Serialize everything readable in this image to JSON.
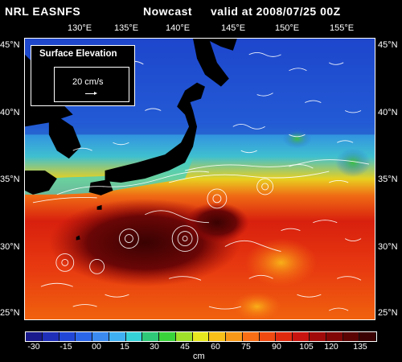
{
  "header": {
    "left": "NRL EASNFS",
    "middle": "Nowcast",
    "right": "valid at 2008/07/25 00Z"
  },
  "lon_labels": [
    "130°E",
    "135°E",
    "140°E",
    "145°E",
    "150°E",
    "155°E"
  ],
  "lat_labels": [
    "45°N",
    "40°N",
    "35°N",
    "30°N",
    "25°N"
  ],
  "legend": {
    "title": "Surface Elevation",
    "reference_vector": "20 cm/s"
  },
  "colorbar": {
    "labels": [
      "-30",
      "-15",
      "00",
      "15",
      "30",
      "45",
      "60",
      "75",
      "90",
      "105",
      "120",
      "135"
    ],
    "unit": "cm",
    "colors": [
      "#1a1a8c",
      "#1f2fb8",
      "#2046d8",
      "#2a66e8",
      "#3a8af0",
      "#3fb0f2",
      "#35d2d8",
      "#2ec878",
      "#3ad23a",
      "#9ee02a",
      "#e8e820",
      "#f8c018",
      "#f89818",
      "#f86e14",
      "#f04a10",
      "#e02a0e",
      "#c8140e",
      "#a00a08",
      "#800606",
      "#5a0404",
      "#3a0202"
    ]
  }
}
